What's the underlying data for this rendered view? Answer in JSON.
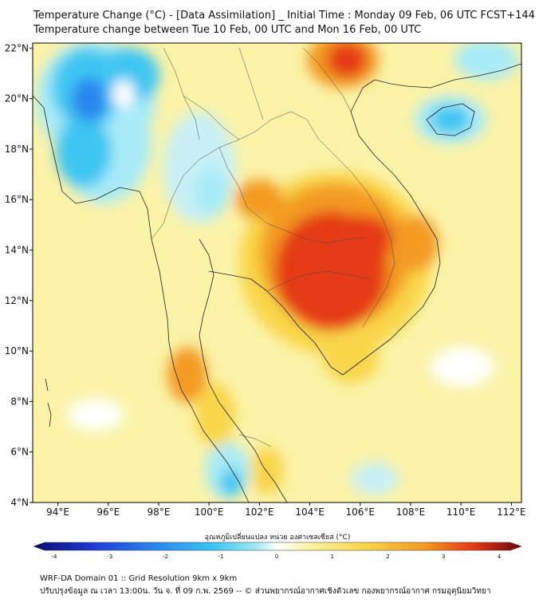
{
  "title": {
    "line1": "Temperature Change (°C) - [Data Assimilation] _ Initial Time : Monday 09 Feb, 06 UTC FCST+144",
    "line2": "Temperature change between Tue 10 Feb, 00 UTC and Mon 16 Feb, 00 UTC"
  },
  "map": {
    "lat_labels": [
      "22°N",
      "20°N",
      "18°N",
      "16°N",
      "14°N",
      "12°N",
      "10°N",
      "8°N",
      "6°N",
      "4°N"
    ],
    "lon_labels": [
      "94°E",
      "96°E",
      "98°E",
      "100°E",
      "102°E",
      "104°E",
      "106°E",
      "108°E",
      "110°E",
      "112°E"
    ],
    "lat_range": [
      4,
      22.2
    ],
    "lon_range": [
      93,
      112.4
    ]
  },
  "colorbar": {
    "title": "อุณหภูมิเปลี่ยนแปลง หน่วย องศาเซลเซียส (°C)",
    "tick_labels": [
      "-4",
      "-3",
      "-2",
      "-1",
      "0",
      "1",
      "2",
      "3",
      "4"
    ],
    "range": [
      -4,
      4
    ],
    "colors": {
      "min": "#0a0a6e",
      "c_dark_blue": "#1f3bd6",
      "c_blue": "#2a86ee",
      "c_cyan": "#3cc6f2",
      "c_light_cyan": "#a8ebf7",
      "zero": "#ffffff",
      "c_light_yellow": "#fbf3a6",
      "c_yellow": "#f9d648",
      "c_orange": "#f39a20",
      "c_red": "#e53a16",
      "max": "#6e0606"
    }
  },
  "footer": {
    "line1": "WRF-DA Domain 01 :: Grid Resolution 9km x 9km",
    "line2": "ปรับปรุงข้อมูล ณ เวลา 13:00น. วัน จ. ที่ 09 ก.พ. 2569 -- © ส่วนพยากรณ์อากาศเชิงตัวเลข กองพยากรณ์อากาศ กรมอุตุนิยมวิทยา"
  }
}
